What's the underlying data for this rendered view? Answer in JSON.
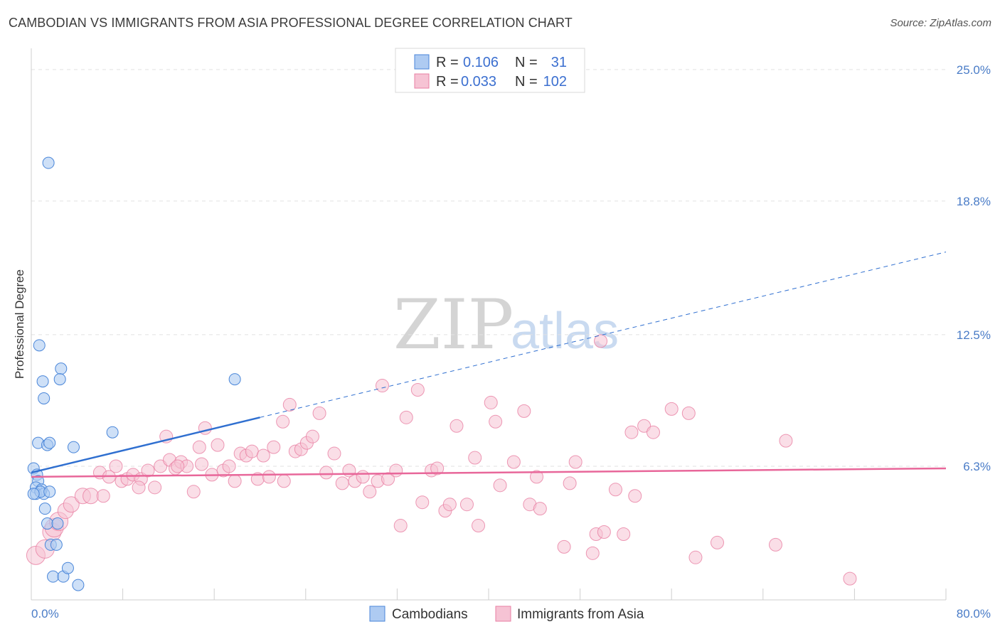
{
  "header": {
    "title": "CAMBODIAN VS IMMIGRANTS FROM ASIA PROFESSIONAL DEGREE CORRELATION CHART",
    "source": "Source: ZipAtlas.com"
  },
  "watermark": {
    "zip": "ZIP",
    "atlas": "atlas"
  },
  "colors": {
    "blue": "#4a86d9",
    "blue_fill": "#aecbf2",
    "blue_line": "#2f6fd0",
    "pink": "#e87fa3",
    "pink_fill": "#f6c3d4",
    "pink_line": "#e8679a",
    "grid": "#e2e2e2",
    "tick_text": "#4a7cc7"
  },
  "legend": {
    "rows": [
      {
        "r_label": "R =",
        "r_value": "0.106",
        "n_label": "N =",
        "n_value": "31"
      },
      {
        "r_label": "R =",
        "r_value": "0.033",
        "n_label": "N =",
        "n_value": "102"
      }
    ]
  },
  "chart_data": {
    "type": "scatter",
    "title": "CAMBODIAN VS IMMIGRANTS FROM ASIA PROFESSIONAL DEGREE CORRELATION CHART",
    "xlabel": "",
    "ylabel": "Professional Degree",
    "xlim": [
      0,
      80
    ],
    "ylim": [
      0,
      26
    ],
    "x_tick_labels": [
      "0.0%",
      "80.0%"
    ],
    "y_ticks": [
      6.3,
      12.5,
      18.8,
      25.0
    ],
    "y_tick_labels": [
      "6.3%",
      "12.5%",
      "18.8%",
      "25.0%"
    ],
    "legend_position": "top-center",
    "series": [
      {
        "name": "Cambodians",
        "r": 0.106,
        "n": 31,
        "trend": {
          "x0": 0,
          "y0": 6.0,
          "x1": 20,
          "y1": 8.6,
          "dash_to_x": 80,
          "dash_to_y": 16.4
        },
        "points": [
          [
            1.5,
            20.6
          ],
          [
            0.7,
            12.0
          ],
          [
            2.6,
            10.9
          ],
          [
            2.5,
            10.4
          ],
          [
            1.0,
            10.3
          ],
          [
            1.1,
            9.5
          ],
          [
            17.8,
            10.4
          ],
          [
            7.1,
            7.9
          ],
          [
            0.6,
            7.4
          ],
          [
            1.4,
            7.3
          ],
          [
            1.6,
            7.4
          ],
          [
            3.7,
            7.2
          ],
          [
            0.2,
            6.2
          ],
          [
            0.5,
            5.9
          ],
          [
            0.6,
            5.6
          ],
          [
            0.4,
            5.3
          ],
          [
            0.9,
            5.2
          ],
          [
            0.4,
            5.0
          ],
          [
            1.1,
            5.0
          ],
          [
            0.8,
            5.1
          ],
          [
            0.2,
            5.0
          ],
          [
            1.6,
            5.1
          ],
          [
            1.2,
            4.3
          ],
          [
            1.4,
            3.6
          ],
          [
            2.3,
            3.6
          ],
          [
            1.7,
            2.6
          ],
          [
            2.2,
            2.6
          ],
          [
            1.9,
            1.1
          ],
          [
            2.8,
            1.1
          ],
          [
            3.2,
            1.5
          ],
          [
            4.1,
            0.7
          ]
        ]
      },
      {
        "name": "Immigrants from Asia",
        "r": 0.033,
        "n": 102,
        "trend": {
          "x0": 0,
          "y0": 5.8,
          "x1": 80,
          "y1": 6.2
        },
        "points": [
          [
            0.4,
            2.1
          ],
          [
            1.2,
            2.4
          ],
          [
            1.8,
            3.2
          ],
          [
            2.0,
            3.4
          ],
          [
            2.4,
            3.7
          ],
          [
            3.0,
            4.2
          ],
          [
            3.5,
            4.5
          ],
          [
            4.5,
            4.9
          ],
          [
            5.2,
            4.9
          ],
          [
            6.0,
            6.0
          ],
          [
            6.8,
            5.8
          ],
          [
            7.4,
            6.3
          ],
          [
            7.9,
            5.6
          ],
          [
            8.4,
            5.7
          ],
          [
            8.9,
            5.9
          ],
          [
            9.6,
            5.7
          ],
          [
            10.2,
            6.1
          ],
          [
            10.8,
            5.3
          ],
          [
            11.3,
            6.3
          ],
          [
            11.8,
            7.7
          ],
          [
            12.1,
            6.6
          ],
          [
            12.6,
            6.2
          ],
          [
            13.1,
            6.5
          ],
          [
            13.6,
            6.3
          ],
          [
            14.2,
            5.1
          ],
          [
            14.7,
            7.2
          ],
          [
            15.2,
            8.1
          ],
          [
            15.8,
            5.9
          ],
          [
            16.3,
            7.3
          ],
          [
            16.8,
            6.1
          ],
          [
            17.3,
            6.3
          ],
          [
            17.8,
            5.6
          ],
          [
            18.3,
            6.9
          ],
          [
            18.8,
            6.8
          ],
          [
            19.3,
            7.0
          ],
          [
            19.8,
            5.7
          ],
          [
            20.3,
            6.8
          ],
          [
            20.8,
            5.8
          ],
          [
            21.2,
            7.2
          ],
          [
            22.0,
            8.4
          ],
          [
            22.6,
            9.2
          ],
          [
            23.1,
            7.0
          ],
          [
            23.6,
            7.1
          ],
          [
            24.1,
            7.4
          ],
          [
            24.6,
            7.7
          ],
          [
            25.2,
            8.8
          ],
          [
            25.8,
            6.0
          ],
          [
            26.5,
            6.9
          ],
          [
            27.2,
            5.5
          ],
          [
            27.8,
            6.1
          ],
          [
            28.3,
            5.6
          ],
          [
            29.0,
            5.8
          ],
          [
            29.6,
            5.1
          ],
          [
            30.3,
            5.6
          ],
          [
            31.2,
            5.7
          ],
          [
            31.9,
            6.1
          ],
          [
            32.3,
            3.5
          ],
          [
            32.8,
            8.6
          ],
          [
            33.8,
            9.9
          ],
          [
            34.2,
            4.6
          ],
          [
            35.0,
            6.1
          ],
          [
            35.5,
            6.2
          ],
          [
            36.2,
            4.2
          ],
          [
            36.6,
            4.5
          ],
          [
            37.2,
            8.2
          ],
          [
            38.1,
            4.5
          ],
          [
            38.8,
            6.7
          ],
          [
            39.1,
            3.5
          ],
          [
            40.2,
            9.3
          ],
          [
            40.6,
            8.4
          ],
          [
            41.0,
            5.4
          ],
          [
            42.2,
            6.5
          ],
          [
            43.1,
            8.9
          ],
          [
            43.6,
            4.5
          ],
          [
            44.5,
            4.3
          ],
          [
            44.2,
            5.8
          ],
          [
            46.6,
            2.5
          ],
          [
            47.1,
            5.5
          ],
          [
            47.6,
            6.5
          ],
          [
            49.1,
            2.2
          ],
          [
            49.4,
            3.1
          ],
          [
            50.1,
            3.2
          ],
          [
            49.8,
            12.2
          ],
          [
            51.1,
            5.2
          ],
          [
            51.8,
            3.1
          ],
          [
            52.5,
            7.9
          ],
          [
            53.6,
            8.2
          ],
          [
            54.4,
            7.9
          ],
          [
            52.8,
            4.9
          ],
          [
            56.0,
            9.0
          ],
          [
            58.1,
            2.0
          ],
          [
            57.5,
            8.8
          ],
          [
            60.0,
            2.7
          ],
          [
            65.1,
            2.6
          ],
          [
            66.0,
            7.5
          ],
          [
            71.6,
            1.0
          ],
          [
            22.1,
            5.6
          ],
          [
            6.3,
            4.9
          ],
          [
            9.4,
            5.3
          ],
          [
            14.9,
            6.4
          ],
          [
            30.7,
            10.1
          ],
          [
            12.8,
            6.3
          ]
        ]
      }
    ]
  },
  "bottom_legend": [
    {
      "label": "Cambodians"
    },
    {
      "label": "Immigrants from Asia"
    }
  ]
}
